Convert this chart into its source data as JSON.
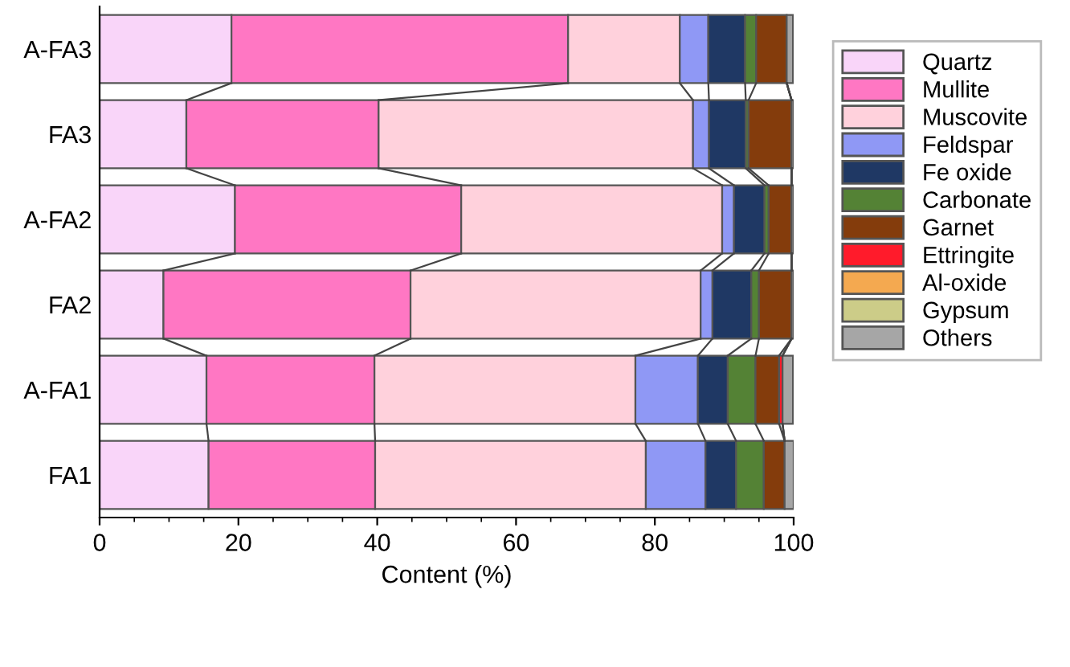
{
  "chart_data": {
    "type": "bar",
    "orientation": "horizontal",
    "stacked": true,
    "xlabel": "Content (%)",
    "categories": [
      "A-FA3",
      "FA3",
      "A-FA2",
      "FA2",
      "A-FA1",
      "FA1"
    ],
    "series": [
      {
        "name": "Quartz",
        "color": "#f9d5f9",
        "values": [
          19.0,
          12.5,
          19.5,
          9.2,
          15.4,
          15.7
        ]
      },
      {
        "name": "Mullite",
        "color": "#ff77c3",
        "values": [
          48.5,
          27.7,
          32.6,
          35.6,
          24.2,
          24.0
        ]
      },
      {
        "name": "Muscovite",
        "color": "#ffd1dc",
        "values": [
          16.1,
          45.3,
          37.6,
          41.8,
          37.6,
          39.0
        ]
      },
      {
        "name": "Feldspar",
        "color": "#8f98f5",
        "values": [
          4.1,
          2.3,
          1.7,
          1.7,
          9.0,
          8.6
        ]
      },
      {
        "name": "Fe oxide",
        "color": "#1f3864",
        "values": [
          5.3,
          5.3,
          4.4,
          5.6,
          4.3,
          4.4
        ]
      },
      {
        "name": "Carbonate",
        "color": "#548235",
        "values": [
          1.6,
          0.4,
          0.6,
          1.1,
          4.0,
          4.0
        ]
      },
      {
        "name": "Garnet",
        "color": "#843c0c",
        "values": [
          4.4,
          6.2,
          3.3,
          4.7,
          3.4,
          3.0
        ]
      },
      {
        "name": "Ettringite",
        "color": "#ff1b2b",
        "values": [
          0,
          0,
          0,
          0,
          0.5,
          0
        ]
      },
      {
        "name": "Al-oxide",
        "color": "#f4a950",
        "values": [
          0,
          0,
          0,
          0,
          0,
          0
        ]
      },
      {
        "name": "Gypsum",
        "color": "#cccc88",
        "values": [
          0,
          0,
          0,
          0,
          0,
          0
        ]
      },
      {
        "name": "Others",
        "color": "#a6a6a6",
        "values": [
          0.9,
          0.3,
          0.3,
          0.3,
          1.5,
          1.3
        ]
      }
    ],
    "xlim": [
      0,
      100
    ],
    "xticks": [
      0,
      20,
      40,
      60,
      80,
      100
    ],
    "legend": "right"
  }
}
